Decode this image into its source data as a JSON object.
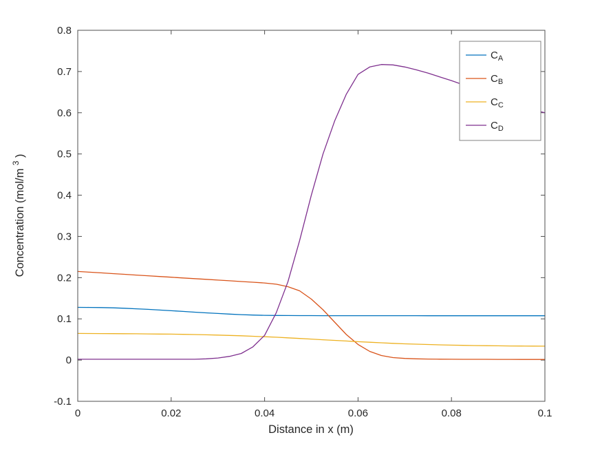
{
  "chart_data": {
    "type": "line",
    "title": "",
    "xlabel": "Distance in x (m)",
    "ylabel": "Concentration (mol/m^3)",
    "ylabel_parts": [
      "Concentration (mol/m",
      "3",
      ")"
    ],
    "xlim": [
      0,
      0.1
    ],
    "ylim": [
      -0.1,
      0.8
    ],
    "xticks": [
      0,
      0.02,
      0.04,
      0.06,
      0.08,
      0.1
    ],
    "xtick_labels": [
      "0",
      "0.02",
      "0.04",
      "0.06",
      "0.08",
      "0.1"
    ],
    "yticks": [
      -0.1,
      0,
      0.1,
      0.2,
      0.3,
      0.4,
      0.5,
      0.6,
      0.7,
      0.8
    ],
    "ytick_labels": [
      "-0.1",
      "0",
      "0.1",
      "0.2",
      "0.3",
      "0.4",
      "0.5",
      "0.6",
      "0.7",
      "0.8"
    ],
    "grid": false,
    "legend_position": "top-right",
    "background_color": "#ffffff",
    "axis_color": "#4d4d4d",
    "text_color": "#262626",
    "legend_edge_color": "#808080",
    "x": [
      0,
      0.0025,
      0.005,
      0.0075,
      0.01,
      0.0125,
      0.015,
      0.0175,
      0.02,
      0.0225,
      0.025,
      0.0275,
      0.03,
      0.0325,
      0.035,
      0.0375,
      0.04,
      0.0425,
      0.045,
      0.0475,
      0.05,
      0.0525,
      0.055,
      0.0575,
      0.06,
      0.0625,
      0.065,
      0.0675,
      0.07,
      0.0725,
      0.075,
      0.0775,
      0.08,
      0.0825,
      0.085,
      0.0875,
      0.09,
      0.0925,
      0.095,
      0.0975,
      0.1
    ],
    "series": [
      {
        "id": "c-a",
        "name": "C_A",
        "label_parts": [
          "C",
          "A"
        ],
        "color": "#0072BD",
        "y": [
          0.128,
          0.1278,
          0.1274,
          0.1267,
          0.1257,
          0.1244,
          0.123,
          0.1214,
          0.1197,
          0.118,
          0.1163,
          0.1146,
          0.113,
          0.1116,
          0.1103,
          0.1093,
          0.1086,
          0.1082,
          0.108,
          0.1079,
          0.1079,
          0.1078,
          0.1078,
          0.1078,
          0.1078,
          0.1077,
          0.1077,
          0.1077,
          0.1077,
          0.1077,
          0.1076,
          0.1076,
          0.1076,
          0.1076,
          0.1076,
          0.1076,
          0.1075,
          0.1075,
          0.1075,
          0.1075,
          0.1075
        ]
      },
      {
        "id": "c-b",
        "name": "C_B",
        "label_parts": [
          "C",
          "B"
        ],
        "color": "#D95319",
        "y": [
          0.215,
          0.2133,
          0.2115,
          0.2098,
          0.208,
          0.2063,
          0.2045,
          0.2028,
          0.201,
          0.1993,
          0.1975,
          0.1958,
          0.194,
          0.1923,
          0.1905,
          0.1888,
          0.187,
          0.184,
          0.178,
          0.168,
          0.148,
          0.122,
          0.092,
          0.062,
          0.038,
          0.021,
          0.011,
          0.006,
          0.004,
          0.003,
          0.0025,
          0.0022,
          0.002,
          0.0019,
          0.0018,
          0.0018,
          0.0017,
          0.0017,
          0.0016,
          0.0016,
          0.0015
        ]
      },
      {
        "id": "c-c",
        "name": "C_C",
        "label_parts": [
          "C",
          "C"
        ],
        "color": "#EDB120",
        "y": [
          0.0646,
          0.0645,
          0.0643,
          0.0642,
          0.064,
          0.0638,
          0.0635,
          0.0632,
          0.0629,
          0.0624,
          0.0619,
          0.0613,
          0.0606,
          0.0598,
          0.0589,
          0.0578,
          0.0566,
          0.0554,
          0.054,
          0.0525,
          0.0509,
          0.0493,
          0.0477,
          0.0462,
          0.0446,
          0.0432,
          0.0419,
          0.0406,
          0.0395,
          0.0386,
          0.0377,
          0.037,
          0.0363,
          0.0358,
          0.0353,
          0.0349,
          0.0346,
          0.0343,
          0.0341,
          0.0339,
          0.0337
        ]
      },
      {
        "id": "c-d",
        "name": "C_D",
        "label_parts": [
          "C",
          "D"
        ],
        "color": "#7E2F8E",
        "y": [
          0.002,
          0.002,
          0.002,
          0.002,
          0.002,
          0.002,
          0.002,
          0.002,
          0.002,
          0.002,
          0.002,
          0.003,
          0.005,
          0.009,
          0.016,
          0.032,
          0.06,
          0.115,
          0.19,
          0.29,
          0.4,
          0.5,
          0.58,
          0.645,
          0.693,
          0.711,
          0.717,
          0.716,
          0.711,
          0.704,
          0.696,
          0.687,
          0.678,
          0.668,
          0.658,
          0.648,
          0.636,
          0.625,
          0.613,
          0.6065,
          0.6
        ]
      }
    ]
  }
}
